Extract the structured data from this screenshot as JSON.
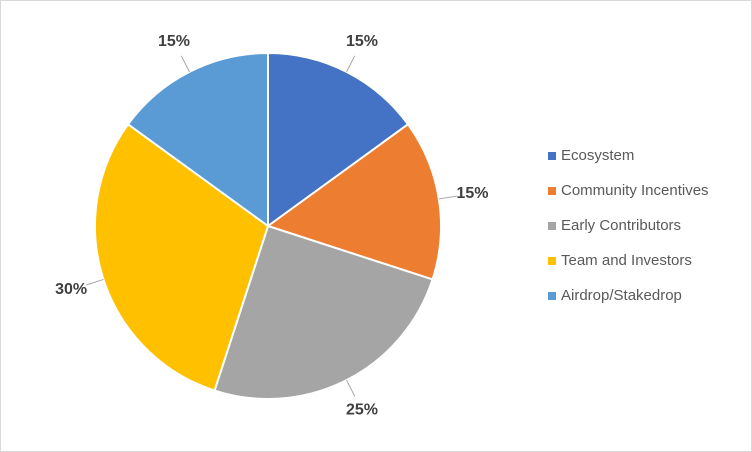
{
  "chart_data": {
    "type": "pie",
    "categories": [
      "Ecosystem",
      "Community Incentives",
      "Early Contributors",
      "Team and Investors",
      "Airdrop/Stakedrop"
    ],
    "values": [
      15,
      15,
      25,
      30,
      15
    ],
    "value_labels": [
      "15%",
      "15%",
      "25%",
      "30%",
      "15%"
    ],
    "colors": [
      "#4472c4",
      "#ed7d31",
      "#a5a5a5",
      "#ffc000",
      "#5b9bd5"
    ],
    "legend": "right"
  }
}
